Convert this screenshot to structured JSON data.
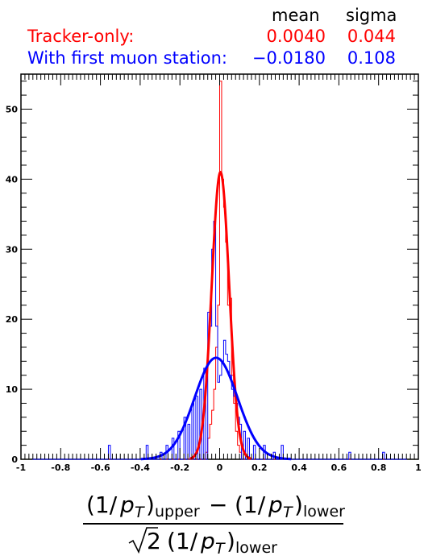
{
  "legend": {
    "header_mean": "mean",
    "header_sigma": "sigma",
    "entries": [
      {
        "label": "Tracker-only:",
        "mean": "0.0040",
        "sigma": "0.044",
        "color": "#ff0000"
      },
      {
        "label": "With first muon station:",
        "mean": "−0.0180",
        "sigma": "0.108",
        "color": "#0000ff"
      }
    ]
  },
  "axis_label": {
    "num_a": "(1/",
    "p": "p",
    "T": "T",
    "num_b": ")",
    "upper": "upper",
    "minus": "−",
    "lower": "lower",
    "den_a": "2",
    "den_b": "(1/"
  },
  "chart_data": {
    "type": "histogram",
    "xlim": [
      -1,
      1
    ],
    "ylim": [
      0,
      55
    ],
    "x_ticks": [
      -1,
      -0.8,
      -0.6,
      -0.4,
      -0.2,
      0,
      0.2,
      0.4,
      0.6,
      0.8,
      1
    ],
    "x_tick_labels": [
      "-1",
      "-0.8",
      "-0.6",
      "-0.4",
      "-0.2",
      "0",
      "0.2",
      "0.4",
      "0.6",
      "0.8",
      "1"
    ],
    "y_ticks": [
      0,
      10,
      20,
      30,
      40,
      50
    ],
    "y_tick_labels": [
      "0",
      "10",
      "20",
      "30",
      "40",
      "50"
    ],
    "bin_width": 0.01,
    "series": [
      {
        "name": "Tracker-only",
        "color": "#ff0000",
        "bins": [
          [
            -0.07,
            1
          ],
          [
            -0.06,
            3
          ],
          [
            -0.05,
            5
          ],
          [
            -0.04,
            7
          ],
          [
            -0.03,
            10
          ],
          [
            -0.02,
            16
          ],
          [
            -0.01,
            22
          ],
          [
            0.0,
            54
          ],
          [
            0.01,
            40
          ],
          [
            0.02,
            36
          ],
          [
            0.03,
            31
          ],
          [
            0.04,
            22
          ],
          [
            0.05,
            23
          ],
          [
            0.06,
            12
          ],
          [
            0.07,
            8
          ],
          [
            0.08,
            4
          ],
          [
            0.09,
            2
          ],
          [
            0.1,
            1
          ]
        ],
        "fit": {
          "mean": 0.004,
          "sigma": 0.044,
          "amplitude": 41
        }
      },
      {
        "name": "With first muon station",
        "color": "#0000ff",
        "bins": [
          [
            -0.56,
            2
          ],
          [
            -0.37,
            2
          ],
          [
            -0.3,
            1
          ],
          [
            -0.27,
            2
          ],
          [
            -0.24,
            3
          ],
          [
            -0.21,
            4
          ],
          [
            -0.18,
            6
          ],
          [
            -0.16,
            5
          ],
          [
            -0.14,
            8
          ],
          [
            -0.12,
            9
          ],
          [
            -0.1,
            10
          ],
          [
            -0.08,
            13
          ],
          [
            -0.06,
            21
          ],
          [
            -0.05,
            19
          ],
          [
            -0.04,
            30
          ],
          [
            -0.03,
            34
          ],
          [
            -0.02,
            19
          ],
          [
            -0.01,
            11
          ],
          [
            0.0,
            12
          ],
          [
            0.01,
            14
          ],
          [
            0.02,
            17
          ],
          [
            0.03,
            15
          ],
          [
            0.04,
            14
          ],
          [
            0.05,
            12
          ],
          [
            0.06,
            10
          ],
          [
            0.07,
            9
          ],
          [
            0.08,
            8
          ],
          [
            0.09,
            6
          ],
          [
            0.1,
            5
          ],
          [
            0.12,
            4
          ],
          [
            0.14,
            3
          ],
          [
            0.17,
            2
          ],
          [
            0.22,
            2
          ],
          [
            0.27,
            1
          ],
          [
            0.31,
            2
          ],
          [
            0.65,
            1
          ],
          [
            0.82,
            1
          ]
        ],
        "fit": {
          "mean": -0.018,
          "sigma": 0.108,
          "amplitude": 14.5
        }
      }
    ]
  }
}
